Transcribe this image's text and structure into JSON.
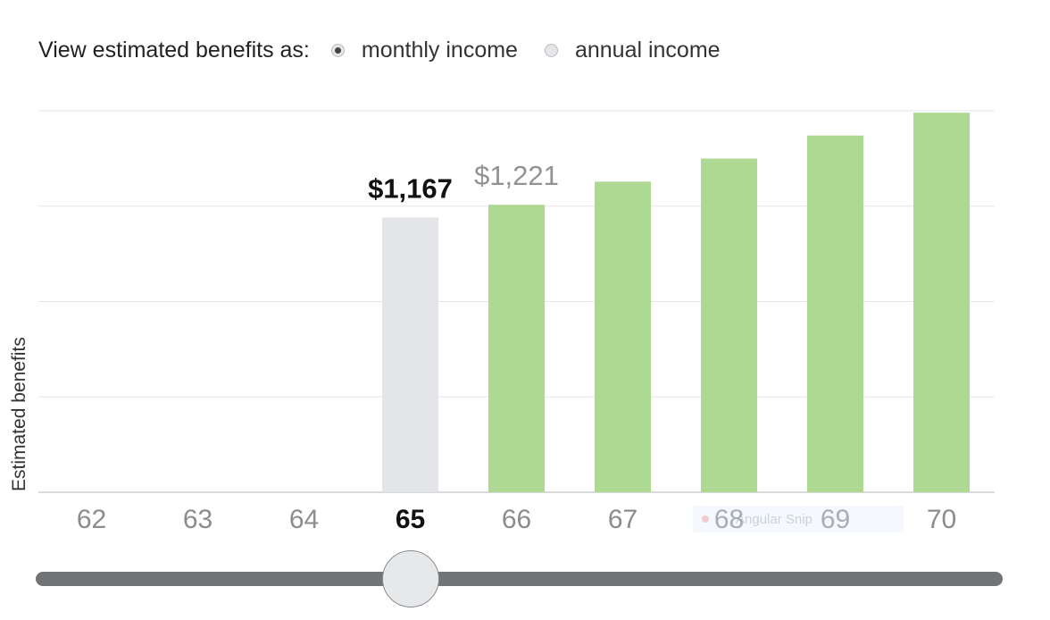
{
  "controls": {
    "prompt": "View estimated benefits as:",
    "options": [
      {
        "label": "monthly income",
        "checked": true
      },
      {
        "label": "annual income",
        "checked": false
      }
    ]
  },
  "chart_data": {
    "type": "bar",
    "ylabel": "Estimated benefits",
    "categories": [
      "62",
      "63",
      "64",
      "65",
      "66",
      "67",
      "68",
      "69",
      "70"
    ],
    "values": [
      null,
      null,
      null,
      1167,
      1221,
      1319,
      1417,
      1515,
      1612
    ],
    "selected_category": "65",
    "labeled_values": {
      "65": "$1,167",
      "66": "$1,221"
    },
    "ylim": [
      0,
      1620
    ],
    "grid": true,
    "bar_colors": {
      "selected": "#e3e5e8",
      "other": "#aed993"
    },
    "tick_colors": {
      "selected": "#111111",
      "other": "#8a8d90"
    }
  },
  "tooltip_ghost": {
    "text": "Angular Snip"
  },
  "slider": {
    "value": "65",
    "min": "62",
    "max": "70"
  }
}
